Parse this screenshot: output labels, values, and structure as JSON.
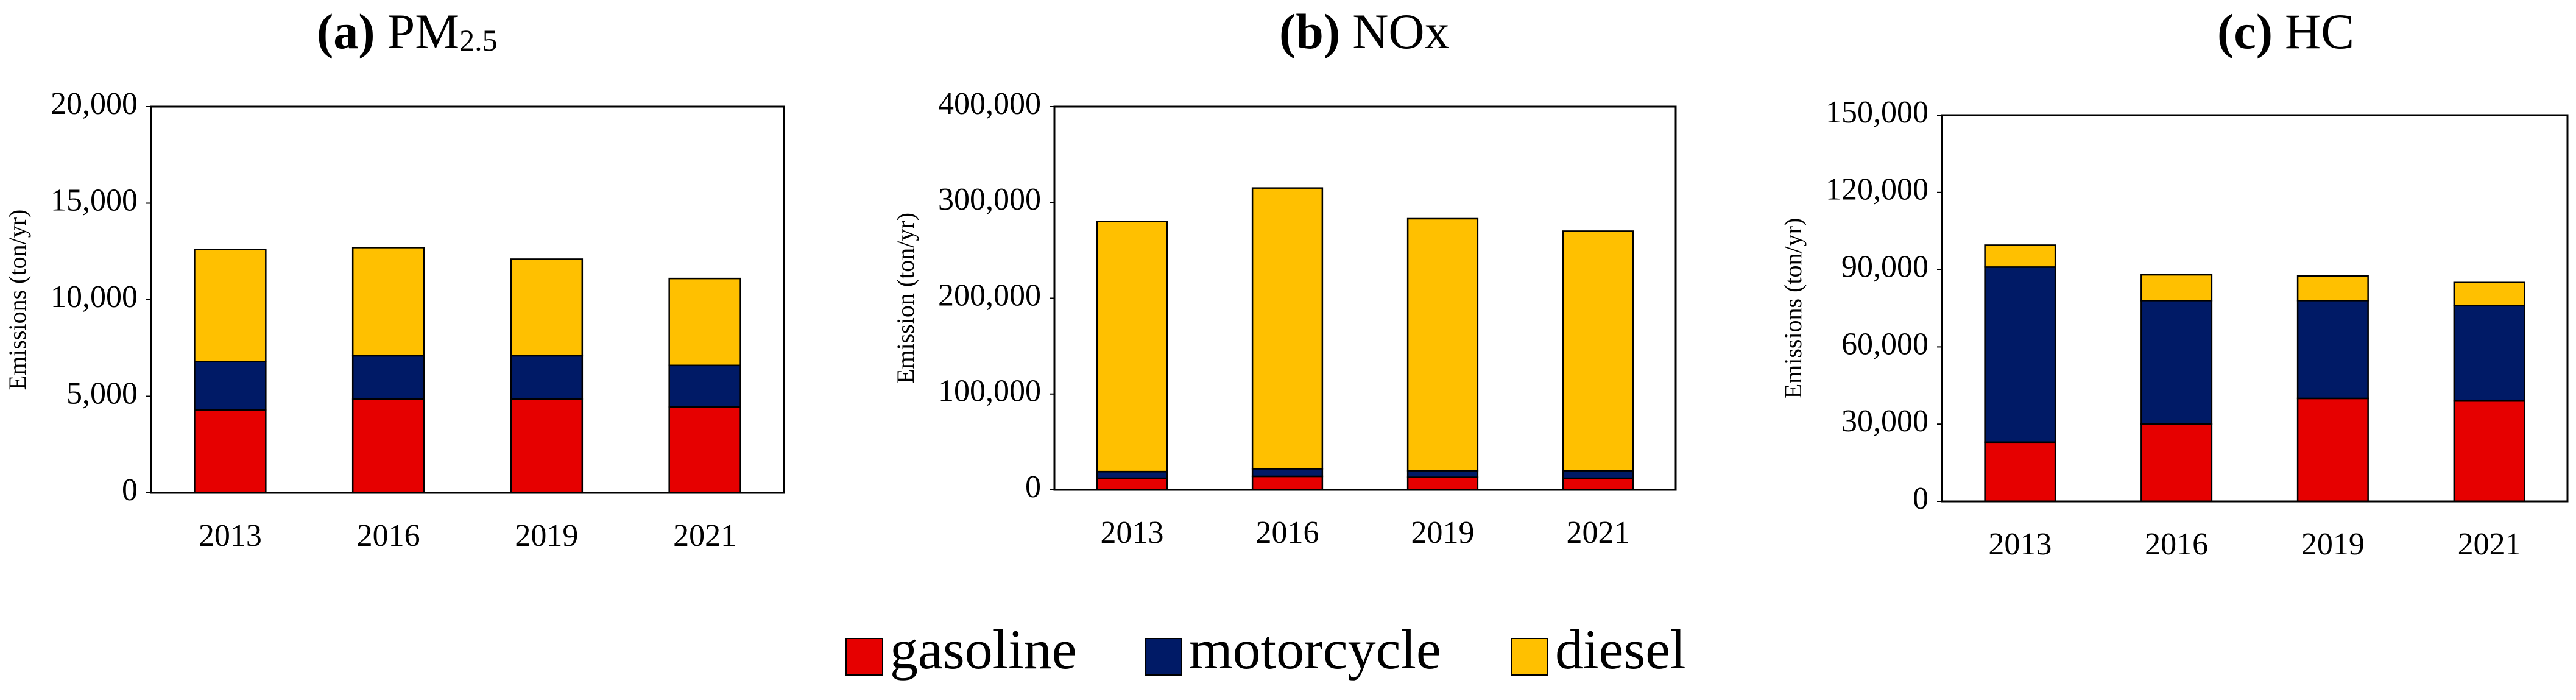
{
  "chart_data": [
    {
      "type": "bar",
      "stacked": true,
      "panel": "(a)",
      "title": "PM",
      "title_subscript": "2.5",
      "y_label": "Emissions  (ton/yr)",
      "categories": [
        "2013",
        "2016",
        "2019",
        "2021"
      ],
      "series": [
        {
          "name": "gasoline",
          "color": "#e60000",
          "values": [
            4300,
            4850,
            4850,
            4450
          ]
        },
        {
          "name": "motorcycle",
          "color": "#001a66",
          "values": [
            2500,
            2250,
            2250,
            2150
          ]
        },
        {
          "name": "diesel",
          "color": "#ffc000",
          "values": [
            5800,
            5600,
            5000,
            4500
          ]
        }
      ],
      "ylim": [
        0,
        20000
      ],
      "yticks": [
        0,
        {
          "value": 5000,
          "label": "5,000"
        },
        {
          "value": 10000,
          "label": "10,000"
        },
        {
          "value": 15000,
          "label": "15,000"
        },
        {
          "value": 20000,
          "label": "20,000"
        }
      ]
    },
    {
      "type": "bar",
      "stacked": true,
      "panel": "(b)",
      "title": "NOx",
      "y_label": "Emission (ton/yr)",
      "categories": [
        "2013",
        "2016",
        "2019",
        "2021"
      ],
      "series": [
        {
          "name": "gasoline",
          "color": "#e60000",
          "values": [
            12000,
            14000,
            13000,
            12000
          ]
        },
        {
          "name": "motorcycle",
          "color": "#001a66",
          "values": [
            7000,
            8000,
            7000,
            8000
          ]
        },
        {
          "name": "diesel",
          "color": "#ffc000",
          "values": [
            261000,
            293000,
            263000,
            250000
          ]
        }
      ],
      "ylim": [
        0,
        400000
      ],
      "yticks": [
        0,
        {
          "value": 100000,
          "label": "100,000"
        },
        {
          "value": 200000,
          "label": "200,000"
        },
        {
          "value": 300000,
          "label": "300,000"
        },
        {
          "value": 400000,
          "label": "400,000"
        }
      ]
    },
    {
      "type": "bar",
      "stacked": true,
      "panel": "(c)",
      "title": "HC",
      "y_label": "Emissions (ton/yr)",
      "categories": [
        "2013",
        "2016",
        "2019",
        "2021"
      ],
      "series": [
        {
          "name": "gasoline",
          "color": "#e60000",
          "values": [
            23000,
            30000,
            40000,
            39000
          ]
        },
        {
          "name": "motorcycle",
          "color": "#001a66",
          "values": [
            68000,
            48000,
            38000,
            37000
          ]
        },
        {
          "name": "diesel",
          "color": "#ffc000",
          "values": [
            8500,
            10000,
            9500,
            9000
          ]
        }
      ],
      "ylim": [
        0,
        150000
      ],
      "yticks": [
        0,
        {
          "value": 30000,
          "label": "30,000"
        },
        {
          "value": 60000,
          "label": "60,000"
        },
        {
          "value": 90000,
          "label": "90,000"
        },
        {
          "value": 120000,
          "label": "120,000"
        },
        {
          "value": 150000,
          "label": "150,000"
        }
      ]
    }
  ]
}
